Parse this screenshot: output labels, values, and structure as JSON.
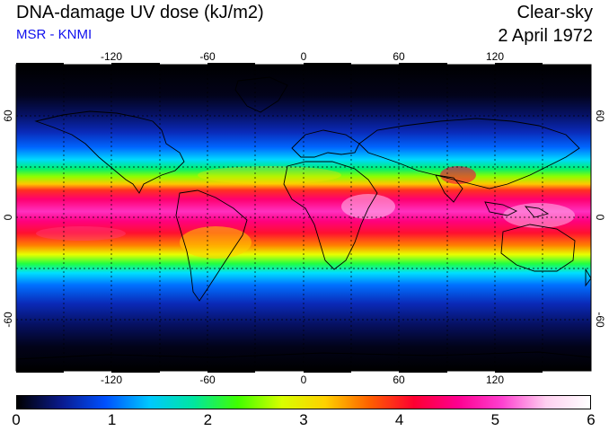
{
  "header": {
    "title": "DNA-damage UV dose (kJ/m2)",
    "source": "MSR - KNMI",
    "condition": "Clear-sky",
    "date": "2 April 1972"
  },
  "map": {
    "lon_ticks": [
      "-120",
      "-60",
      "0",
      "60",
      "120"
    ],
    "lat_ticks": [
      "60",
      "0",
      "-60"
    ],
    "lon_range": [
      -180,
      180
    ],
    "lat_range": [
      -90,
      90
    ],
    "gridlines": "dashed, every 30 degrees"
  },
  "colorbar": {
    "min": 0,
    "max": 6,
    "labels": [
      "0",
      "1",
      "2",
      "3",
      "4",
      "5",
      "6"
    ],
    "colors": [
      "#000000",
      "#0a1a8c",
      "#0050ff",
      "#00c8ff",
      "#00e6a0",
      "#40ff00",
      "#d8ff00",
      "#ffd000",
      "#ff6000",
      "#ff0030",
      "#ff0090",
      "#ff40d0",
      "#ffd0f0",
      "#ffffff"
    ]
  }
}
